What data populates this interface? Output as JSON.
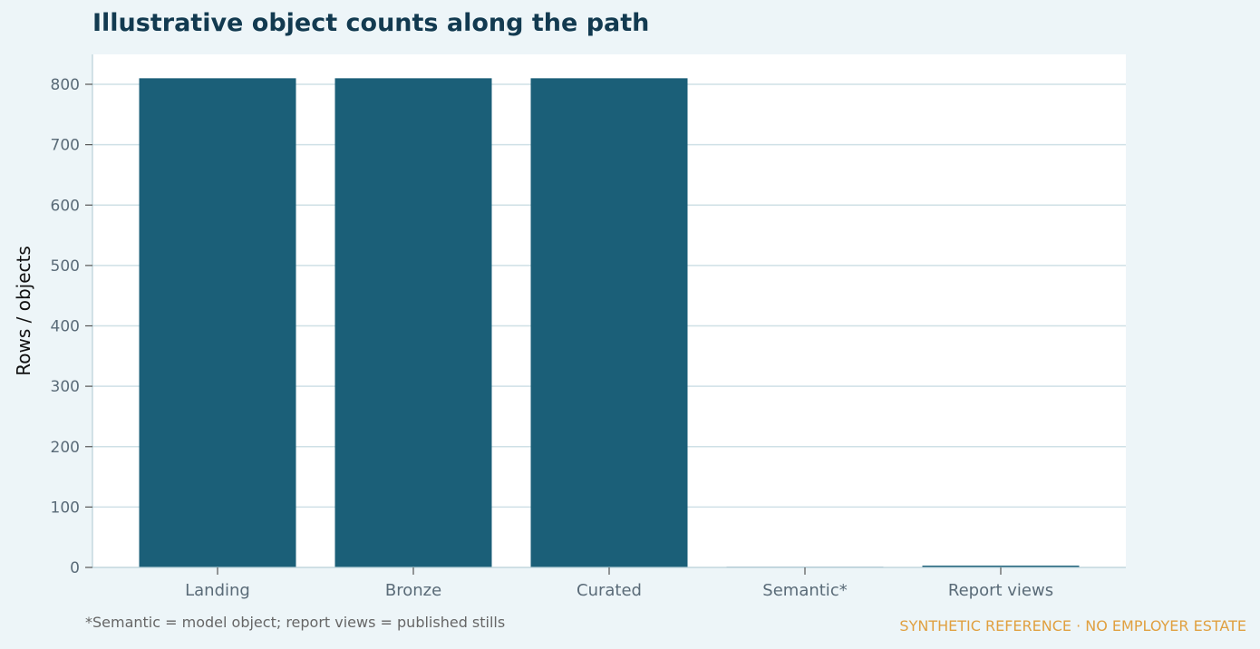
{
  "chart_data": {
    "type": "bar",
    "title": "Illustrative object counts along the path",
    "xlabel": "",
    "ylabel": "Rows / objects",
    "categories": [
      "Landing",
      "Bronze",
      "Curated",
      "Semantic*",
      "Report views"
    ],
    "values": [
      810,
      810,
      810,
      1,
      3
    ],
    "ylim": [
      0,
      850
    ],
    "yticks": [
      0,
      100,
      200,
      300,
      400,
      500,
      600,
      700,
      800
    ],
    "grid": true,
    "legend": "none",
    "bar_color": "#1b5f78",
    "grid_color": "#cfe0e6"
  },
  "footnote": "*Semantic = model object; report views = published stills",
  "watermark": "SYNTHETIC REFERENCE · NO EMPLOYER ESTATE"
}
